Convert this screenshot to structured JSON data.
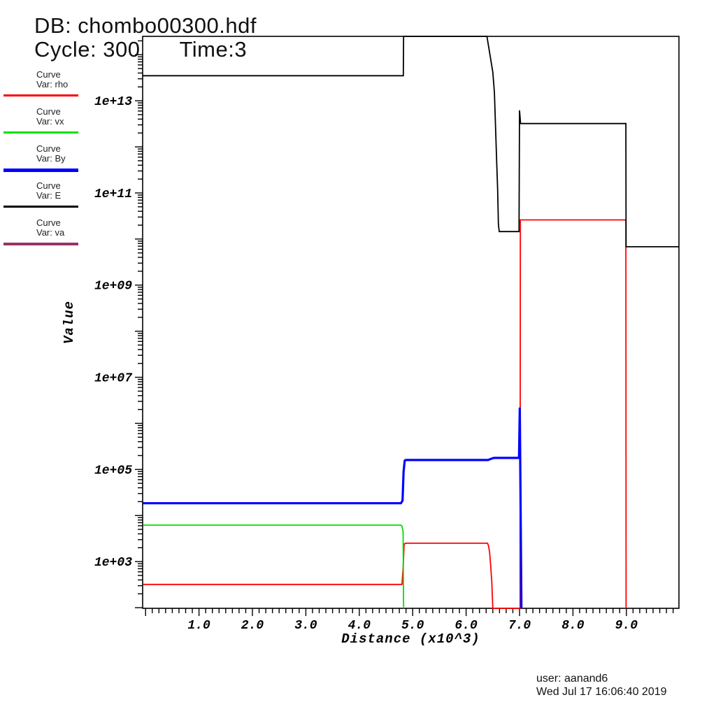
{
  "header": {
    "db_label": "DB: chombo00300.hdf",
    "cycle_label": "Cycle: 300",
    "time_label": "Time:3"
  },
  "legend": {
    "entries": [
      {
        "name": "rho",
        "type_label": "Curve",
        "var_label": "Var: rho",
        "color": "#ff0000",
        "line_weight": 2.5
      },
      {
        "name": "vx",
        "type_label": "Curve",
        "var_label": "Var: vx",
        "color": "#00e000",
        "line_weight": 2.5
      },
      {
        "name": "By",
        "type_label": "Curve",
        "var_label": "Var: By",
        "color": "#0000ff",
        "line_weight": 4.5
      },
      {
        "name": "E",
        "type_label": "Curve",
        "var_label": "Var: E",
        "color": "#000000",
        "line_weight": 2.5
      },
      {
        "name": "va",
        "type_label": "Curve",
        "var_label": "Var: va",
        "color": "#993366",
        "line_weight": 3.5
      }
    ]
  },
  "footer": {
    "user_line": "user: aanand6",
    "timestamp_line": "Wed Jul 17 16:06:40 2019"
  },
  "chart_data": {
    "type": "line",
    "title": "",
    "xlabel": "Distance (x10^3)",
    "ylabel": "Value",
    "grid": false,
    "legend_position": "upper-left-outside",
    "x_axis": {
      "min": -0.055,
      "max": 9.984,
      "major_ticks": [
        0,
        1,
        2,
        3,
        4,
        5,
        6,
        7,
        8,
        9
      ],
      "labels": {
        "1": "1.0",
        "2": "2.0",
        "3": "3.0",
        "4": "4.0",
        "5": "5.0",
        "6": "6.0",
        "7": "7.0",
        "8": "8.0",
        "9": "9.0"
      },
      "minor_step": 0.125
    },
    "y_axis": {
      "scale": "log10",
      "min_log10": 1.986,
      "max_log10": 14.398,
      "major_decades": [
        2,
        3,
        4,
        5,
        6,
        7,
        8,
        9,
        10,
        11,
        12,
        13,
        14
      ],
      "labels": {
        "3": "1e+03",
        "5": "1e+05",
        "7": "1e+07",
        "9": "1e+09",
        "11": "1e+11",
        "13": "1e+13"
      }
    },
    "series": [
      {
        "name": "rho",
        "color": "#ff0000",
        "width": 1.8,
        "points": [
          [
            -0.05,
            320
          ],
          [
            4.8,
            320
          ],
          [
            4.82,
            700
          ],
          [
            4.84,
            2400
          ],
          [
            4.87,
            2500
          ],
          [
            6.4,
            2500
          ],
          [
            6.42,
            2200
          ],
          [
            6.44,
            1600
          ],
          [
            6.46,
            800
          ],
          [
            6.48,
            370
          ],
          [
            6.5,
            95
          ],
          [
            6.51,
            40
          ],
          [
            7.01,
            40
          ],
          [
            7.015,
            26000000000
          ],
          [
            8.99,
            26000000000
          ],
          [
            8.995,
            40
          ]
        ]
      },
      {
        "name": "vx",
        "color": "#00e000",
        "width": 1.8,
        "points": [
          [
            -0.05,
            6200
          ],
          [
            4.775,
            6200
          ],
          [
            4.8,
            5900
          ],
          [
            4.82,
            4500
          ],
          [
            4.83,
            40
          ]
        ]
      },
      {
        "name": "By",
        "color": "#0000ff",
        "width": 3.2,
        "points": [
          [
            -0.05,
            18500
          ],
          [
            4.78,
            18500
          ],
          [
            4.81,
            21000
          ],
          [
            4.83,
            90000
          ],
          [
            4.85,
            155000
          ],
          [
            4.87,
            160000
          ],
          [
            6.41,
            160000
          ],
          [
            6.5,
            175000
          ],
          [
            6.53,
            178000
          ],
          [
            6.99,
            178000
          ],
          [
            7.005,
            2200000
          ],
          [
            7.035,
            30
          ]
        ]
      },
      {
        "name": "E",
        "color": "#000000",
        "width": 1.8,
        "points": [
          [
            -0.05,
            35000000000000.0
          ],
          [
            4.825,
            35000000000000.0
          ],
          [
            4.83,
            300000000000000.0
          ],
          [
            6.39,
            300000000000000.0
          ],
          [
            6.5,
            42000000000000.0
          ],
          [
            6.53,
            15000000000000.0
          ],
          [
            6.57,
            550000000000.0
          ],
          [
            6.59,
            120000000000.0
          ],
          [
            6.605,
            21000000000.0
          ],
          [
            6.62,
            14500000000.0
          ],
          [
            6.99,
            14500000000.0
          ],
          [
            7.0,
            6200000000000.0
          ],
          [
            7.02,
            3200000000000.0
          ],
          [
            8.99,
            3200000000000.0
          ],
          [
            8.995,
            6800000000.0
          ],
          [
            9.984,
            6800000000.0
          ]
        ]
      },
      {
        "name": "va",
        "color": "#993366",
        "width": 3,
        "points": []
      }
    ]
  }
}
